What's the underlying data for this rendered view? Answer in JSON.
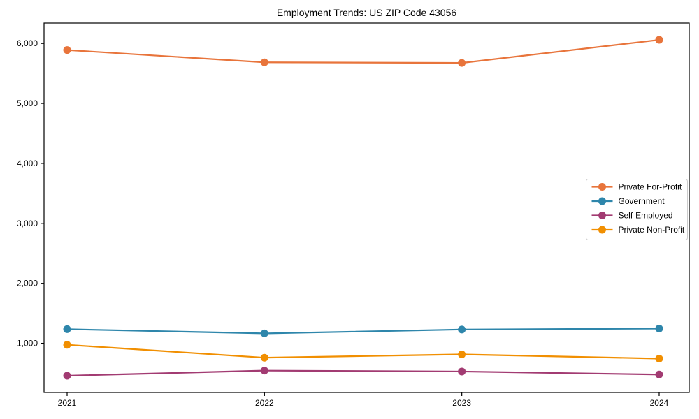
{
  "chart_data": {
    "type": "line",
    "title": "Employment Trends: US ZIP Code 43056",
    "xlabel": "",
    "ylabel": "",
    "x": [
      "2021",
      "2022",
      "2023",
      "2024"
    ],
    "ylim": [
      180,
      6340
    ],
    "yticks": [
      1000,
      2000,
      3000,
      4000,
      5000,
      6000
    ],
    "ytick_labels": [
      "1,000",
      "2,000",
      "3,000",
      "4,000",
      "5,000",
      "6,000"
    ],
    "grid": false,
    "legend_position": "center-right",
    "series": [
      {
        "name": "Private For-Profit",
        "color": "#E8743B",
        "values": [
          5890,
          5685,
          5675,
          6060
        ]
      },
      {
        "name": "Government",
        "color": "#2E86AB",
        "values": [
          1235,
          1165,
          1230,
          1245
        ]
      },
      {
        "name": "Self-Employed",
        "color": "#A23B72",
        "values": [
          460,
          545,
          530,
          480
        ]
      },
      {
        "name": "Private Non-Profit",
        "color": "#F18F01",
        "values": [
          975,
          760,
          815,
          745
        ]
      }
    ],
    "frame_color": "#000000",
    "legend_border_color": "#cccccc"
  }
}
